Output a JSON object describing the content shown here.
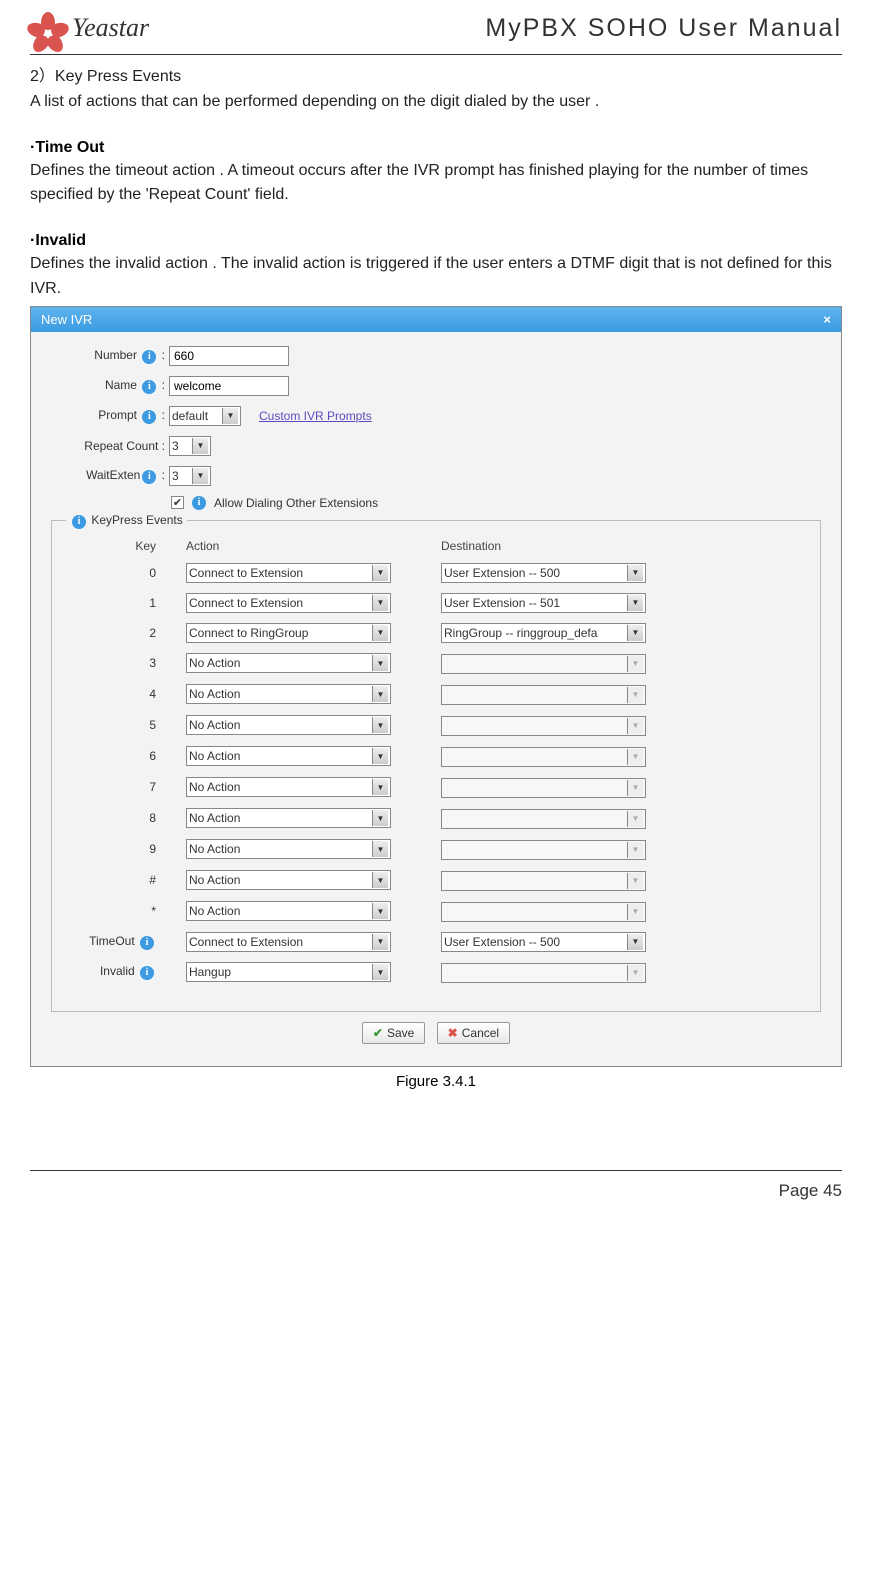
{
  "header": {
    "brand": "Yeastar",
    "manual_title": "MyPBX SOHO User Manual"
  },
  "doc": {
    "subhead": "2）Key Press Events",
    "sub_desc": "A list of actions that can be performed depending on the digit dialed by the user .",
    "timeout_head": "·Time Out",
    "timeout_body": "Defines the timeout action . A timeout occurs after the IVR prompt has finished playing for the number of times specified by the 'Repeat Count' field.",
    "invalid_head": "·Invalid",
    "invalid_body": "Defines the invalid action . The invalid action is triggered if the user enters a DTMF digit that is not defined for this IVR."
  },
  "dialog": {
    "title": "New IVR",
    "close": "×",
    "labels": {
      "number": "Number",
      "name": "Name",
      "prompt": "Prompt",
      "repeat": "Repeat Count :",
      "waitexten": "WaitExten",
      "allow_dial": "Allow Dialing Other Extensions",
      "keypress": "KeyPress Events",
      "key_col": "Key",
      "action_col": "Action",
      "dest_col": "Destination",
      "timeout": "TimeOut",
      "invalid": "Invalid"
    },
    "values": {
      "number": "660",
      "name": "welcome",
      "prompt": "default",
      "repeat": "3",
      "waitexten": "3",
      "allow_dial_checked": "✔"
    },
    "link": "Custom IVR Prompts",
    "rows": [
      {
        "key": "0",
        "action": "Connect to Extension",
        "dest": "User Extension -- 500",
        "dest_enabled": true
      },
      {
        "key": "1",
        "action": "Connect to Extension",
        "dest": "User Extension -- 501",
        "dest_enabled": true
      },
      {
        "key": "2",
        "action": "Connect to RingGroup",
        "dest": "RingGroup -- ringgroup_defa",
        "dest_enabled": true
      },
      {
        "key": "3",
        "action": "No Action",
        "dest": "",
        "dest_enabled": false
      },
      {
        "key": "4",
        "action": "No Action",
        "dest": "",
        "dest_enabled": false
      },
      {
        "key": "5",
        "action": "No Action",
        "dest": "",
        "dest_enabled": false
      },
      {
        "key": "6",
        "action": "No Action",
        "dest": "",
        "dest_enabled": false
      },
      {
        "key": "7",
        "action": "No Action",
        "dest": "",
        "dest_enabled": false
      },
      {
        "key": "8",
        "action": "No Action",
        "dest": "",
        "dest_enabled": false
      },
      {
        "key": "9",
        "action": "No Action",
        "dest": "",
        "dest_enabled": false
      },
      {
        "key": "#",
        "action": "No Action",
        "dest": "",
        "dest_enabled": false
      },
      {
        "key": "*",
        "action": "No Action",
        "dest": "",
        "dest_enabled": false
      }
    ],
    "timeout_row": {
      "action": "Connect to Extension",
      "dest": "User Extension -- 500",
      "dest_enabled": true
    },
    "invalid_row": {
      "action": "Hangup",
      "dest": "",
      "dest_enabled": false
    },
    "buttons": {
      "save": "Save",
      "cancel": "Cancel"
    }
  },
  "caption": "Figure 3.4.1",
  "footer": "Page 45",
  "colors": {
    "titlebar_from": "#5fb4ef",
    "titlebar_to": "#3a9ae0",
    "info_icon": "#3b9ae1",
    "brand_red": "#d9534f"
  }
}
